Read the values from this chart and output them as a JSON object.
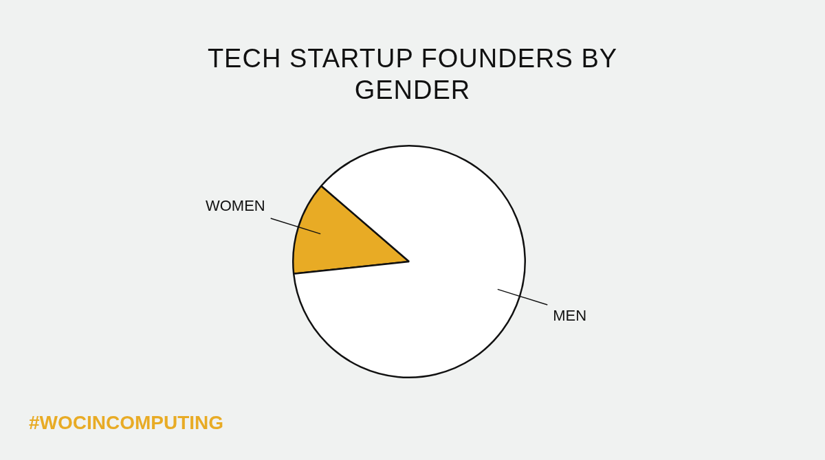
{
  "chart_data": {
    "type": "pie",
    "title": "TECH STARTUP FOUNDERS BY GENDER",
    "categories": [
      "WOMEN",
      "MEN"
    ],
    "values": [
      13,
      87
    ],
    "colors": [
      "#e8ab25",
      "#ffffff"
    ],
    "legend": false,
    "annotations": [
      "#WOCINCOMPUTING"
    ]
  }
}
